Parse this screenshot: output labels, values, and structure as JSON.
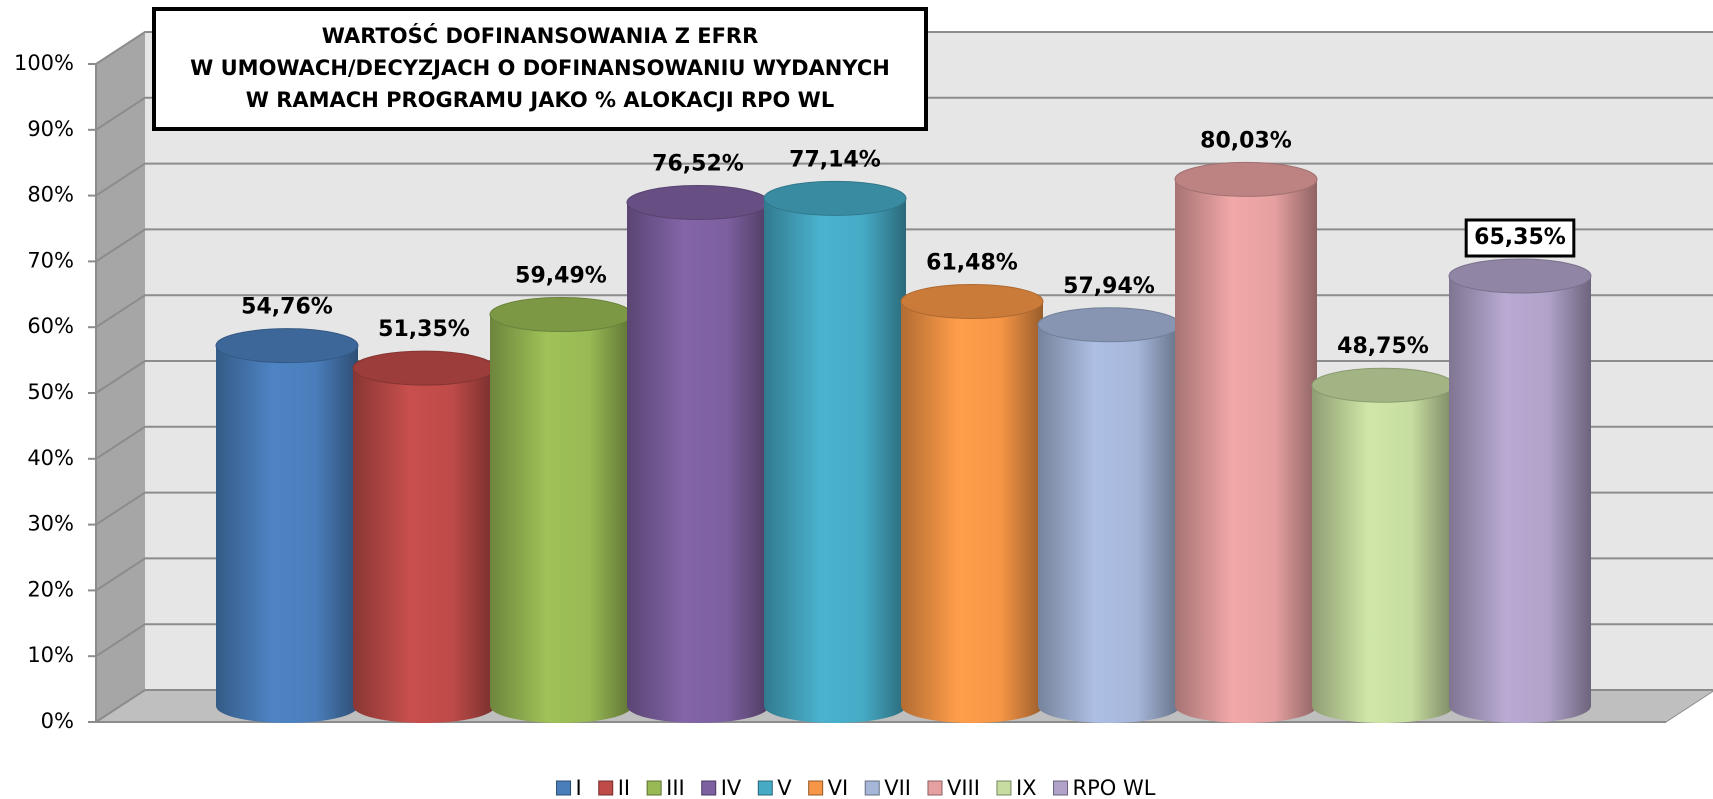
{
  "chart_data": {
    "type": "bar3d",
    "title": [
      "WARTOŚĆ DOFINANSOWANIA Z EFRR",
      "W UMOWACH/DECYZJACH O DOFINANSOWANIU WYDANYCH",
      "W RAMACH PROGRAMU JAKO % ALOKACJI RPO WL"
    ],
    "categories": [
      "I",
      "II",
      "III",
      "IV",
      "V",
      "VI",
      "VII",
      "VIII",
      "IX",
      "RPO WL"
    ],
    "values": [
      54.76,
      51.35,
      59.49,
      76.52,
      77.14,
      61.48,
      57.94,
      80.03,
      48.75,
      65.35
    ],
    "value_labels": [
      "54,76%",
      "51,35%",
      "59,49%",
      "76,52%",
      "77,14%",
      "61,48%",
      "57,94%",
      "80,03%",
      "48,75%",
      "65,35%"
    ],
    "colors": [
      "#4a7ebb",
      "#be4b48",
      "#98b954",
      "#7d60a0",
      "#46aac5",
      "#f79646",
      "#a5b6d9",
      "#e6a0a0",
      "#c6dca0",
      "#b0a2c9"
    ],
    "ylim": [
      0,
      100
    ],
    "yticks": [
      {
        "value": 0,
        "label": "0%"
      },
      {
        "value": 10,
        "label": "10%"
      },
      {
        "value": 20,
        "label": "20%"
      },
      {
        "value": 30,
        "label": "30%"
      },
      {
        "value": 40,
        "label": "40%"
      },
      {
        "value": 50,
        "label": "50%"
      },
      {
        "value": 60,
        "label": "60%"
      },
      {
        "value": 70,
        "label": "70%"
      },
      {
        "value": 80,
        "label": "80%"
      },
      {
        "value": 90,
        "label": "90%"
      },
      {
        "value": 100,
        "label": "100%"
      }
    ],
    "grid": true,
    "legend": "bottom"
  }
}
